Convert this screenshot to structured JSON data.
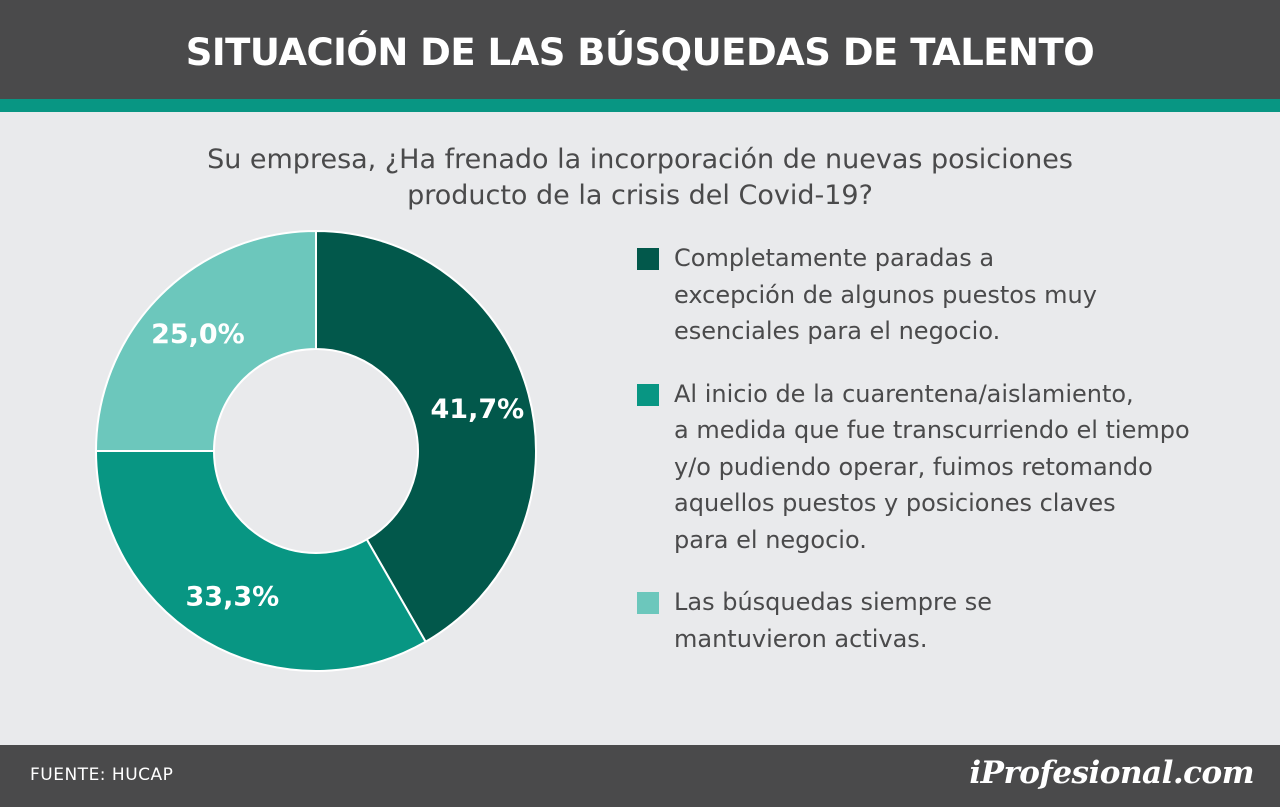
{
  "header": {
    "title": "SITUACIÓN DE LAS BÚSQUEDAS DE TALENTO"
  },
  "question": {
    "line1": "Su empresa, ¿Ha frenado la incorporación de nuevas posiciones",
    "line2": "producto de la crisis del Covid-19?"
  },
  "colors": {
    "dark_green": "#02584b",
    "teal": "#089683",
    "light_teal": "#6cc7bc",
    "header_bg": "#4a4a4b",
    "background": "#e9eaec"
  },
  "legend": [
    {
      "color": "#02584b",
      "lines": [
        "Completamente paradas a",
        "excepción de algunos puestos muy",
        "esenciales para el negocio."
      ]
    },
    {
      "color": "#089683",
      "lines": [
        "Al inicio de la cuarentena/aislamiento,",
        "a medida que fue transcurriendo el tiempo",
        "y/o pudiendo operar, fuimos retomando",
        "aquellos puestos y posiciones claves",
        "para el negocio."
      ]
    },
    {
      "color": "#6cc7bc",
      "lines": [
        "Las búsquedas siempre se",
        "mantuvieron activas."
      ]
    }
  ],
  "chart_data": {
    "type": "pie",
    "title": "Su empresa, ¿Ha frenado la incorporación de nuevas posiciones producto de la crisis del Covid-19?",
    "categories": [
      "Completamente paradas a excepción de algunos puestos muy esenciales para el negocio.",
      "Al inicio de la cuarentena/aislamiento, a medida que fue transcurriendo el tiempo y/o pudiendo operar, fuimos retomando aquellos puestos y posiciones claves para el negocio.",
      "Las búsquedas siempre se mantuvieron activas."
    ],
    "values": [
      41.7,
      33.3,
      25.0
    ],
    "labels": [
      "41,7%",
      "33,3%",
      "25,0%"
    ],
    "colors": [
      "#02584b",
      "#089683",
      "#6cc7bc"
    ],
    "donut": true,
    "start": "top, clockwise",
    "legend_position": "right"
  },
  "footer": {
    "source": "FUENTE:  HUCAP",
    "logo": "iProfesional.com"
  }
}
